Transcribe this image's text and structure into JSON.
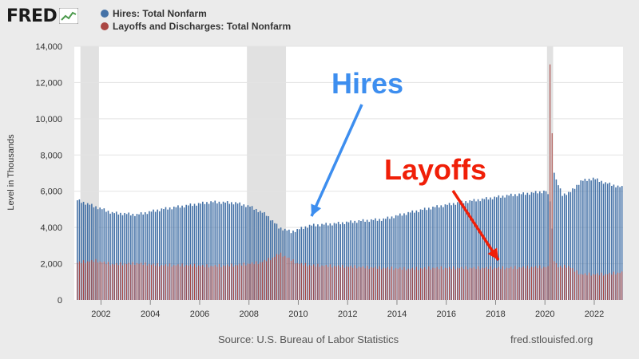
{
  "header": {
    "logo_text": "FRED",
    "logo_icon": "line-graph-icon"
  },
  "colors": {
    "hires": "#4572a7",
    "layoffs": "#aa4643",
    "recession": "#e1e1e1",
    "hires_annotation": "#3d8eef",
    "layoffs_annotation": "#f01f08"
  },
  "chart_data": {
    "type": "bar",
    "ylabel": "Level in Thousands",
    "ylim": [
      0,
      14000
    ],
    "yticks": [
      "0",
      "2,000",
      "4,000",
      "6,000",
      "8,000",
      "10,000",
      "12,000",
      "14,000"
    ],
    "xlim": [
      "2000-12",
      "2023-03"
    ],
    "xticks": [
      "2002",
      "2004",
      "2006",
      "2008",
      "2010",
      "2012",
      "2014",
      "2016",
      "2018",
      "2020",
      "2022"
    ],
    "grid": true,
    "legend_placement": "top-left",
    "recessions": [
      [
        "2001-03",
        "2001-11"
      ],
      [
        "2007-12",
        "2009-06"
      ],
      [
        "2020-02",
        "2020-04"
      ]
    ],
    "series": [
      {
        "name": "Hires: Total Nonfarm",
        "color": "#4572a7",
        "anchors": [
          [
            "2001-01",
            5500
          ],
          [
            "2001-12",
            5050
          ],
          [
            "2002-06",
            4800
          ],
          [
            "2003-06",
            4700
          ],
          [
            "2004-06",
            5000
          ],
          [
            "2005-06",
            5200
          ],
          [
            "2006-06",
            5400
          ],
          [
            "2007-06",
            5350
          ],
          [
            "2008-01",
            5150
          ],
          [
            "2008-09",
            4700
          ],
          [
            "2009-03",
            4000
          ],
          [
            "2009-09",
            3750
          ],
          [
            "2010-06",
            4100
          ],
          [
            "2011-06",
            4200
          ],
          [
            "2012-06",
            4350
          ],
          [
            "2013-06",
            4450
          ],
          [
            "2014-06",
            4800
          ],
          [
            "2015-06",
            5100
          ],
          [
            "2016-06",
            5350
          ],
          [
            "2017-06",
            5550
          ],
          [
            "2018-06",
            5750
          ],
          [
            "2019-06",
            5900
          ],
          [
            "2020-01",
            6000
          ],
          [
            "2020-03",
            5500
          ],
          [
            "2020-04",
            3900
          ],
          [
            "2020-05",
            7100
          ],
          [
            "2020-06",
            6600
          ],
          [
            "2020-09",
            5800
          ],
          [
            "2021-01",
            5950
          ],
          [
            "2021-06",
            6550
          ],
          [
            "2021-12",
            6700
          ],
          [
            "2022-06",
            6450
          ],
          [
            "2023-02",
            6200
          ]
        ]
      },
      {
        "name": "Layoffs and Discharges: Total Nonfarm",
        "color": "#aa4643",
        "anchors": [
          [
            "2001-01",
            2050
          ],
          [
            "2001-10",
            2150
          ],
          [
            "2002-06",
            1950
          ],
          [
            "2003-06",
            2000
          ],
          [
            "2004-06",
            1900
          ],
          [
            "2005-06",
            1900
          ],
          [
            "2006-06",
            1850
          ],
          [
            "2007-06",
            1900
          ],
          [
            "2008-06",
            2050
          ],
          [
            "2008-12",
            2300
          ],
          [
            "2009-03",
            2550
          ],
          [
            "2009-06",
            2400
          ],
          [
            "2009-12",
            2000
          ],
          [
            "2010-06",
            1900
          ],
          [
            "2011-06",
            1850
          ],
          [
            "2012-06",
            1800
          ],
          [
            "2013-06",
            1750
          ],
          [
            "2014-06",
            1700
          ],
          [
            "2015-06",
            1750
          ],
          [
            "2016-06",
            1750
          ],
          [
            "2017-06",
            1750
          ],
          [
            "2018-06",
            1750
          ],
          [
            "2019-06",
            1800
          ],
          [
            "2020-02",
            1800
          ],
          [
            "2020-03",
            13000
          ],
          [
            "2020-04",
            9200
          ],
          [
            "2020-05",
            2200
          ],
          [
            "2020-07",
            1800
          ],
          [
            "2020-12",
            1850
          ],
          [
            "2021-03",
            1600
          ],
          [
            "2021-06",
            1400
          ],
          [
            "2022-06",
            1400
          ],
          [
            "2023-02",
            1500
          ]
        ]
      }
    ]
  },
  "annotations": {
    "hires": "Hires",
    "layoffs": "Layoffs"
  },
  "footer": {
    "source": "Source: U.S. Bureau of Labor Statistics",
    "url": "fred.stlouisfed.org"
  }
}
